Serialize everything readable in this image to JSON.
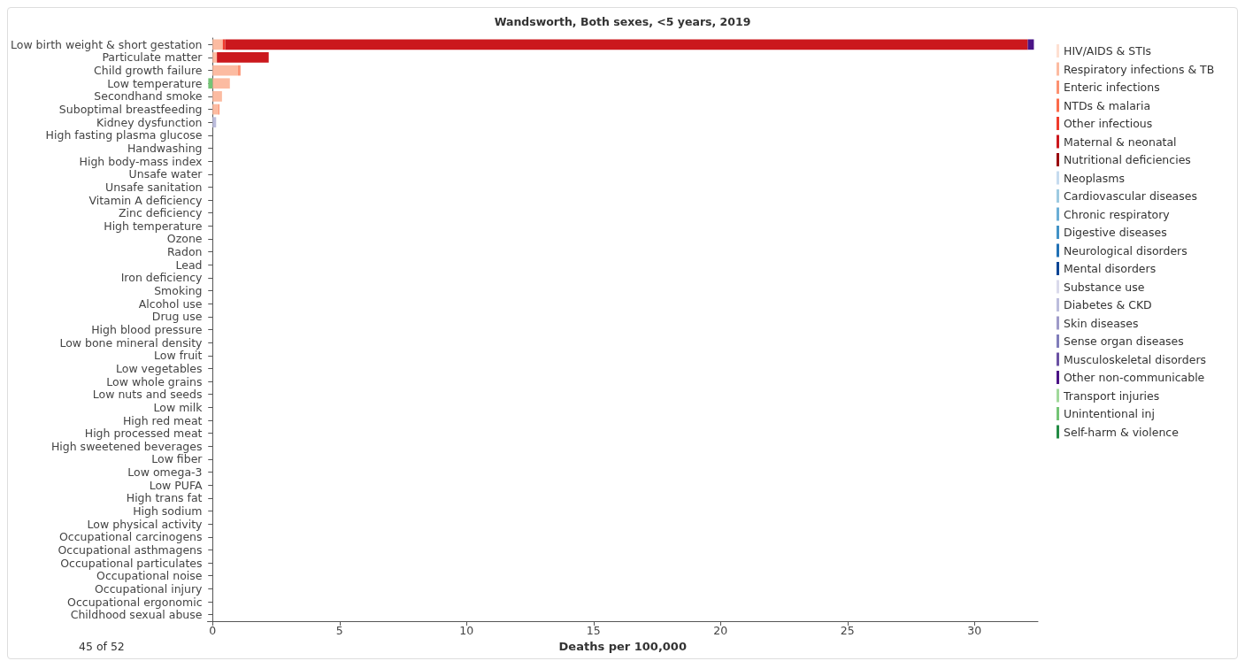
{
  "chart_data": {
    "type": "bar",
    "orientation": "horizontal",
    "stacked": true,
    "title": "Wandsworth, Both sexes, <5 years, 2019",
    "xlabel": "Deaths per 100,000",
    "annotations": [
      "45 of 52"
    ],
    "categories": [
      "Low birth weight & short gestation",
      "Particulate matter",
      "Child growth failure",
      "Low temperature",
      "Secondhand smoke",
      "Suboptimal breastfeeding",
      "Kidney dysfunction",
      "High fasting plasma glucose",
      "Handwashing",
      "High body-mass index",
      "Unsafe water",
      "Unsafe sanitation",
      "Vitamin A deficiency",
      "Zinc deficiency",
      "High temperature",
      "Ozone",
      "Radon",
      "Lead",
      "Iron deficiency",
      "Smoking",
      "Alcohol use",
      "Drug use",
      "High blood pressure",
      "Low bone mineral density",
      "Low fruit",
      "Low vegetables",
      "Low whole grains",
      "Low nuts and seeds",
      "Low milk",
      "High red meat",
      "High processed meat",
      "High sweetened beverages",
      "Low fiber",
      "Low omega-3",
      "Low PUFA",
      "High trans fat",
      "High sodium",
      "Low physical activity",
      "Occupational carcinogens",
      "Occupational asthmagens",
      "Occupational particulates",
      "Occupational noise",
      "Occupational injury",
      "Occupational ergonomic",
      "Childhood sexual abuse"
    ],
    "xlim": [
      -0.2,
      32.5
    ],
    "xticks": [
      0,
      5,
      10,
      15,
      20,
      25,
      30
    ],
    "grid": false,
    "legend": "right",
    "series": [
      {
        "name": "HIV/AIDS & STIs",
        "color": "#fee0d2",
        "values": [
          null,
          null,
          null,
          null,
          null,
          null,
          null,
          null,
          null,
          null,
          null,
          null,
          null,
          null,
          null,
          null,
          null,
          null,
          null,
          null,
          null,
          null,
          null,
          null,
          null,
          null,
          null,
          null,
          null,
          null,
          null,
          null,
          null,
          null,
          null,
          null,
          null,
          null,
          null,
          null,
          null,
          null,
          null,
          null,
          null
        ]
      },
      {
        "name": "Respiratory infections & TB",
        "color": "#fcbba1",
        "values": [
          0.4,
          0.17,
          1.0,
          0.68,
          0.37,
          0.22,
          null,
          null,
          null,
          null,
          null,
          null,
          null,
          null,
          null,
          null,
          null,
          null,
          null,
          null,
          null,
          null,
          null,
          null,
          null,
          null,
          null,
          null,
          null,
          null,
          null,
          null,
          null,
          null,
          null,
          null,
          null,
          null,
          null,
          null,
          null,
          null,
          null,
          null,
          null
        ]
      },
      {
        "name": "Enteric infections",
        "color": "#fc9272",
        "values": [
          null,
          null,
          0.1,
          null,
          null,
          0.05,
          null,
          null,
          null,
          null,
          null,
          null,
          null,
          null,
          null,
          null,
          null,
          null,
          null,
          null,
          null,
          null,
          null,
          null,
          null,
          null,
          null,
          null,
          null,
          null,
          null,
          null,
          null,
          null,
          null,
          null,
          null,
          null,
          null,
          null,
          null,
          null,
          null,
          null,
          null
        ]
      },
      {
        "name": "NTDs & malaria",
        "color": "#fb6a4a",
        "values": [
          null,
          null,
          null,
          null,
          null,
          null,
          null,
          null,
          null,
          null,
          null,
          null,
          null,
          null,
          null,
          null,
          null,
          null,
          null,
          null,
          null,
          null,
          null,
          null,
          null,
          null,
          null,
          null,
          null,
          null,
          null,
          null,
          null,
          null,
          null,
          null,
          null,
          null,
          null,
          null,
          null,
          null,
          null,
          null,
          null
        ]
      },
      {
        "name": "Other infectious",
        "color": "#ef3b2c",
        "values": [
          0.1,
          null,
          null,
          null,
          null,
          null,
          null,
          null,
          null,
          null,
          null,
          null,
          null,
          null,
          null,
          null,
          null,
          null,
          null,
          null,
          null,
          null,
          null,
          null,
          null,
          null,
          null,
          null,
          null,
          null,
          null,
          null,
          null,
          null,
          null,
          null,
          null,
          null,
          null,
          null,
          null,
          null,
          null,
          null,
          null
        ]
      },
      {
        "name": "Maternal & neonatal",
        "color": "#cb181d",
        "values": [
          31.6,
          2.04,
          null,
          null,
          null,
          null,
          null,
          null,
          null,
          null,
          null,
          null,
          null,
          null,
          null,
          null,
          null,
          null,
          null,
          null,
          null,
          null,
          null,
          null,
          null,
          null,
          null,
          null,
          null,
          null,
          null,
          null,
          null,
          null,
          null,
          null,
          null,
          null,
          null,
          null,
          null,
          null,
          null,
          null,
          null
        ]
      },
      {
        "name": "Nutritional deficiencies",
        "color": "#99000d",
        "values": [
          null,
          null,
          null,
          null,
          null,
          null,
          null,
          null,
          null,
          null,
          null,
          null,
          null,
          null,
          null,
          null,
          null,
          null,
          null,
          null,
          null,
          null,
          null,
          null,
          null,
          null,
          null,
          null,
          null,
          null,
          null,
          null,
          null,
          null,
          null,
          null,
          null,
          null,
          null,
          null,
          null,
          null,
          null,
          null,
          null
        ]
      },
      {
        "name": "Neoplasms",
        "color": "#c6dbef",
        "values": [
          null,
          null,
          null,
          null,
          null,
          null,
          null,
          null,
          null,
          null,
          null,
          null,
          null,
          null,
          null,
          null,
          null,
          null,
          null,
          null,
          null,
          null,
          null,
          null,
          null,
          null,
          null,
          null,
          null,
          null,
          null,
          null,
          null,
          null,
          null,
          null,
          null,
          null,
          null,
          null,
          null,
          null,
          null,
          null,
          null
        ]
      },
      {
        "name": "Cardiovascular diseases",
        "color": "#9ecae1",
        "values": [
          null,
          null,
          null,
          null,
          null,
          null,
          null,
          null,
          null,
          null,
          null,
          null,
          null,
          null,
          null,
          null,
          null,
          null,
          null,
          null,
          null,
          null,
          null,
          null,
          null,
          null,
          null,
          null,
          null,
          null,
          null,
          null,
          null,
          null,
          null,
          null,
          null,
          null,
          null,
          null,
          null,
          null,
          null,
          null,
          null
        ]
      },
      {
        "name": "Chronic respiratory",
        "color": "#6baed6",
        "values": [
          null,
          null,
          null,
          null,
          null,
          null,
          null,
          null,
          null,
          null,
          null,
          null,
          null,
          null,
          null,
          null,
          null,
          null,
          null,
          null,
          null,
          null,
          null,
          null,
          null,
          null,
          null,
          null,
          null,
          null,
          null,
          null,
          null,
          null,
          null,
          null,
          null,
          null,
          null,
          null,
          null,
          null,
          null,
          null,
          null
        ]
      },
      {
        "name": "Digestive diseases",
        "color": "#4292c6",
        "values": [
          null,
          null,
          null,
          null,
          null,
          null,
          null,
          null,
          null,
          null,
          null,
          null,
          null,
          null,
          null,
          null,
          null,
          null,
          null,
          null,
          null,
          null,
          null,
          null,
          null,
          null,
          null,
          null,
          null,
          null,
          null,
          null,
          null,
          null,
          null,
          null,
          null,
          null,
          null,
          null,
          null,
          null,
          null,
          null,
          null
        ]
      },
      {
        "name": "Neurological disorders",
        "color": "#2171b5",
        "values": [
          null,
          null,
          null,
          null,
          null,
          null,
          null,
          null,
          null,
          null,
          null,
          null,
          null,
          null,
          null,
          null,
          null,
          null,
          null,
          null,
          null,
          null,
          null,
          null,
          null,
          null,
          null,
          null,
          null,
          null,
          null,
          null,
          null,
          null,
          null,
          null,
          null,
          null,
          null,
          null,
          null,
          null,
          null,
          null,
          null
        ]
      },
      {
        "name": "Mental disorders",
        "color": "#084594",
        "values": [
          null,
          null,
          null,
          null,
          null,
          null,
          null,
          null,
          null,
          null,
          null,
          null,
          null,
          null,
          null,
          null,
          null,
          null,
          null,
          null,
          null,
          null,
          null,
          null,
          null,
          null,
          null,
          null,
          null,
          null,
          null,
          null,
          null,
          null,
          null,
          null,
          null,
          null,
          null,
          null,
          null,
          null,
          null,
          null,
          null
        ]
      },
      {
        "name": "Substance use",
        "color": "#dadaeb",
        "values": [
          null,
          null,
          null,
          null,
          null,
          null,
          null,
          null,
          null,
          null,
          null,
          null,
          null,
          null,
          null,
          null,
          null,
          null,
          null,
          null,
          null,
          null,
          null,
          null,
          null,
          null,
          null,
          null,
          null,
          null,
          null,
          null,
          null,
          null,
          null,
          null,
          null,
          null,
          null,
          null,
          null,
          null,
          null,
          null,
          null
        ]
      },
      {
        "name": "Diabetes & CKD",
        "color": "#bcbddc",
        "values": [
          null,
          null,
          null,
          null,
          null,
          null,
          0.14,
          null,
          null,
          null,
          null,
          null,
          null,
          null,
          null,
          null,
          null,
          null,
          null,
          null,
          null,
          null,
          null,
          null,
          null,
          null,
          null,
          null,
          null,
          null,
          null,
          null,
          null,
          null,
          null,
          null,
          null,
          null,
          null,
          null,
          null,
          null,
          null,
          null,
          null
        ]
      },
      {
        "name": "Skin diseases",
        "color": "#9e9ac8",
        "values": [
          null,
          null,
          null,
          null,
          null,
          null,
          null,
          null,
          null,
          null,
          null,
          null,
          null,
          null,
          null,
          null,
          null,
          null,
          null,
          null,
          null,
          null,
          null,
          null,
          null,
          null,
          null,
          null,
          null,
          null,
          null,
          null,
          null,
          null,
          null,
          null,
          null,
          null,
          null,
          null,
          null,
          null,
          null,
          null,
          null
        ]
      },
      {
        "name": "Sense organ diseases",
        "color": "#807dba",
        "values": [
          null,
          null,
          null,
          null,
          null,
          null,
          null,
          null,
          null,
          null,
          null,
          null,
          null,
          null,
          null,
          null,
          null,
          null,
          null,
          null,
          null,
          null,
          null,
          null,
          null,
          null,
          null,
          null,
          null,
          null,
          null,
          null,
          null,
          null,
          null,
          null,
          null,
          null,
          null,
          null,
          null,
          null,
          null,
          null,
          null
        ]
      },
      {
        "name": "Musculoskeletal disorders",
        "color": "#6a51a3",
        "values": [
          null,
          null,
          null,
          null,
          null,
          null,
          null,
          null,
          null,
          null,
          null,
          null,
          null,
          null,
          null,
          null,
          null,
          null,
          null,
          null,
          null,
          null,
          null,
          null,
          null,
          null,
          null,
          null,
          null,
          null,
          null,
          null,
          null,
          null,
          null,
          null,
          null,
          null,
          null,
          null,
          null,
          null,
          null,
          null,
          null
        ]
      },
      {
        "name": "Other non-communicable",
        "color": "#4a1486",
        "values": [
          0.24,
          null,
          null,
          null,
          null,
          null,
          null,
          null,
          null,
          null,
          null,
          null,
          null,
          null,
          null,
          null,
          null,
          null,
          null,
          null,
          null,
          null,
          null,
          null,
          null,
          null,
          null,
          null,
          null,
          null,
          null,
          null,
          null,
          null,
          null,
          null,
          null,
          null,
          null,
          null,
          null,
          null,
          null,
          null,
          null
        ]
      },
      {
        "name": "Transport injuries",
        "color": "#a1d99b",
        "values": [
          null,
          null,
          null,
          null,
          null,
          null,
          null,
          null,
          null,
          null,
          null,
          null,
          null,
          null,
          null,
          null,
          null,
          null,
          null,
          null,
          null,
          null,
          null,
          null,
          null,
          null,
          null,
          null,
          null,
          null,
          null,
          null,
          null,
          null,
          null,
          null,
          null,
          null,
          null,
          null,
          null,
          null,
          null,
          null,
          null
        ]
      },
      {
        "name": "Unintentional inj",
        "color": "#74c476",
        "values": [
          null,
          null,
          null,
          -0.17,
          null,
          null,
          null,
          null,
          null,
          null,
          null,
          null,
          null,
          null,
          null,
          null,
          null,
          null,
          null,
          null,
          null,
          null,
          null,
          null,
          null,
          null,
          null,
          null,
          null,
          null,
          null,
          null,
          null,
          null,
          null,
          null,
          null,
          null,
          null,
          null,
          null,
          null,
          null,
          null,
          null
        ]
      },
      {
        "name": "Self-harm & violence",
        "color": "#238b45",
        "values": [
          null,
          null,
          null,
          null,
          null,
          null,
          null,
          null,
          null,
          null,
          null,
          null,
          null,
          null,
          null,
          null,
          null,
          null,
          null,
          null,
          null,
          null,
          null,
          null,
          null,
          null,
          null,
          null,
          null,
          null,
          null,
          null,
          null,
          null,
          null,
          null,
          null,
          null,
          null,
          null,
          null,
          null,
          null,
          null,
          null
        ]
      }
    ]
  }
}
